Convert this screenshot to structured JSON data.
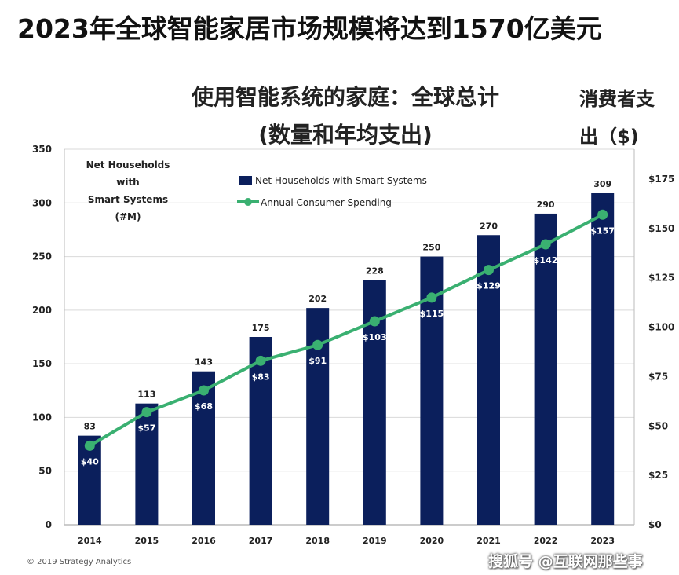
{
  "headline": "2023年全球智能家居市场规模将达到1570亿美元",
  "subtitle_line1": "使用智能系统的家庭：全球总计",
  "subtitle_line2": "(数量和年均支出)",
  "right_axis_title_line1": "消费者支",
  "right_axis_title_line2": "出（$)",
  "copyright": "© 2019 Strategy Analytics",
  "watermark": "搜狐号 @互联网那些事",
  "colors": {
    "bar": "#0b1f5c",
    "line": "#3ab071"
  },
  "chart_data": {
    "type": "bar",
    "categories": [
      "2014",
      "2015",
      "2016",
      "2017",
      "2018",
      "2019",
      "2020",
      "2021",
      "2022",
      "2023"
    ],
    "series": [
      {
        "name": "Net Households with Smart Systems",
        "type": "bar",
        "axis": "left",
        "values": [
          83,
          113,
          143,
          175,
          202,
          228,
          250,
          270,
          290,
          309
        ],
        "labels": [
          "83",
          "113",
          "143",
          "175",
          "202",
          "228",
          "250",
          "270",
          "290",
          "309"
        ]
      },
      {
        "name": "Annual Consumer Spending",
        "type": "line",
        "axis": "right",
        "values": [
          40,
          57,
          68,
          83,
          91,
          103,
          115,
          129,
          142,
          157
        ],
        "labels": [
          "$40",
          "$57",
          "$68",
          "$83",
          "$91",
          "$103",
          "$115",
          "$129",
          "$142",
          "$157"
        ]
      }
    ],
    "ylabel_lines": [
      "Net Households",
      "with",
      "Smart Systems",
      "(#M)"
    ],
    "ylim": [
      0,
      350
    ],
    "y_ticks": [
      "0",
      "50",
      "100",
      "150",
      "200",
      "250",
      "300",
      "350"
    ],
    "y2lim": [
      0,
      175
    ],
    "y2_ticks": [
      "$0",
      "$25",
      "$50",
      "$75",
      "$100",
      "$125",
      "$150",
      "$175"
    ],
    "grid": true,
    "legend_position": "top-center"
  }
}
